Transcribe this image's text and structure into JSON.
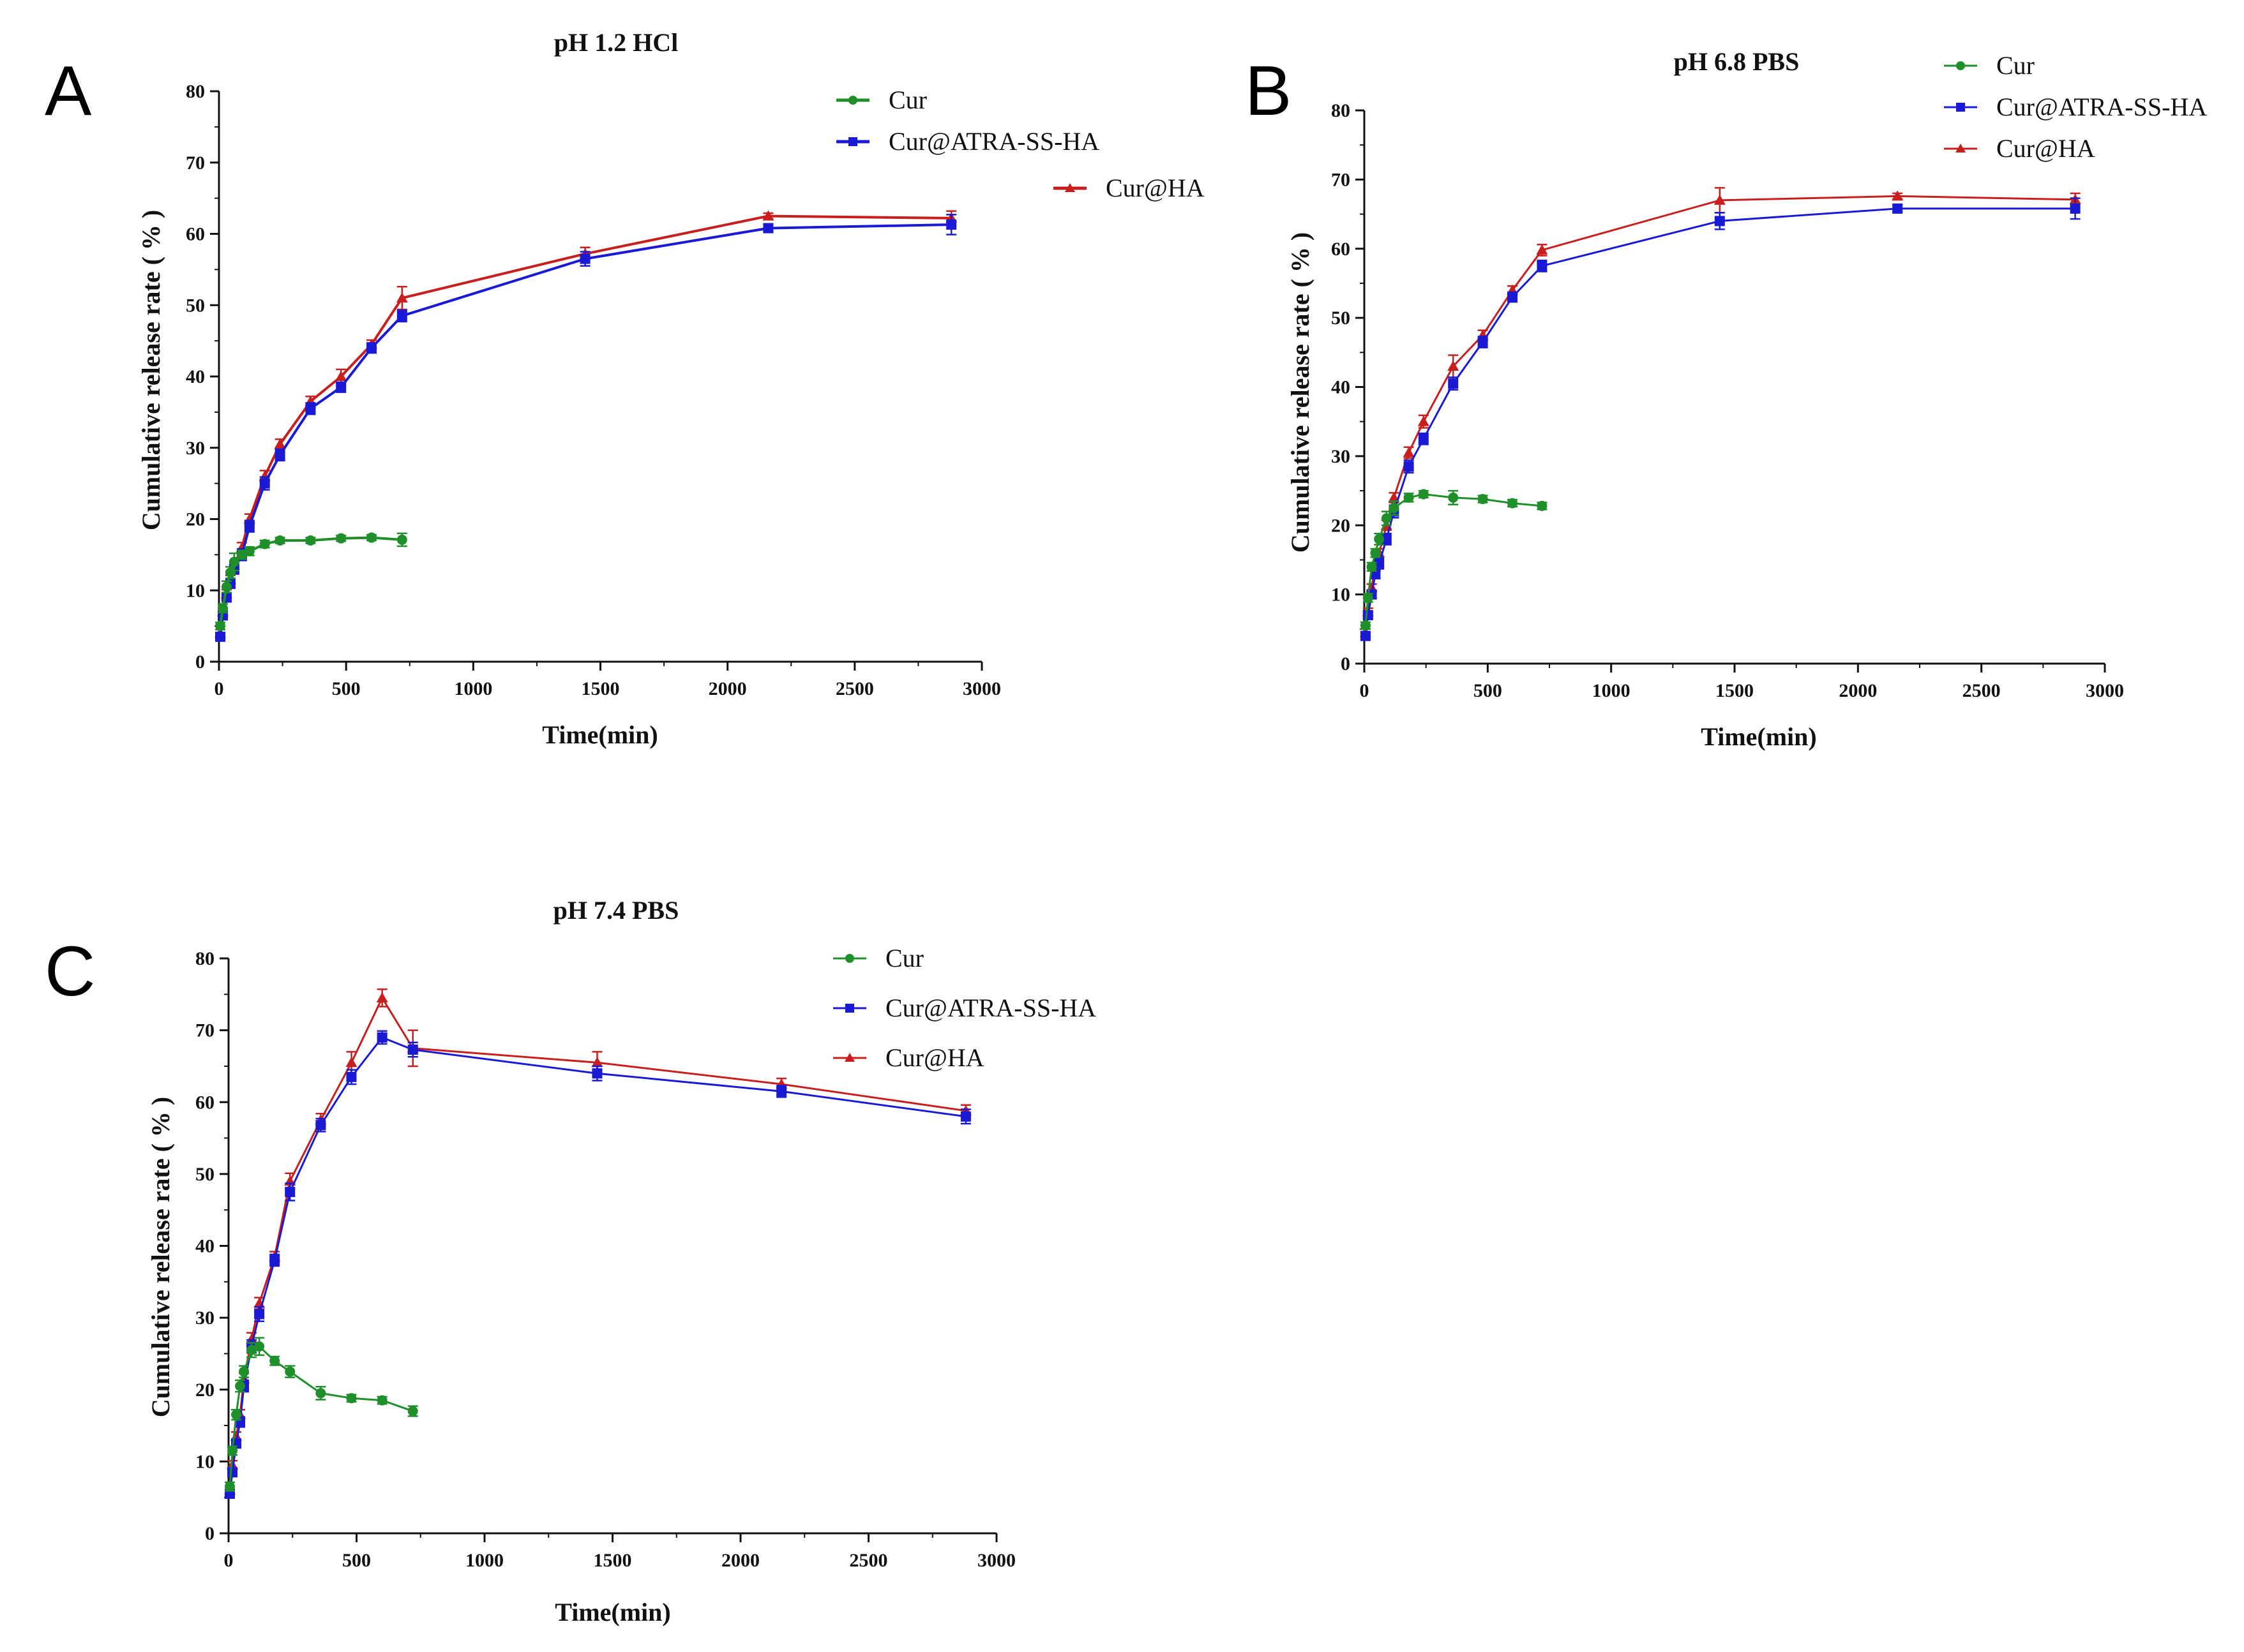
{
  "colors": {
    "Cur": "#1f8f2a",
    "Cur@ATRA-SS-HA": "#1a1ad6",
    "Cur@HA": "#c81e1e"
  },
  "chart_data": [
    {
      "panel": "A",
      "type": "line",
      "title": "pH 1.2 HCl",
      "xlabel": "Time(min)",
      "ylabel": "Cumulative release rate ( % )",
      "xlim": [
        0,
        3000
      ],
      "ylim": [
        0,
        80
      ],
      "xticks": [
        0,
        500,
        1000,
        1500,
        2000,
        2500,
        3000
      ],
      "yticks": [
        0,
        10,
        20,
        30,
        40,
        50,
        60,
        70,
        80
      ],
      "legend": [
        "Cur",
        "Cur@ATRA-SS-HA",
        "Cur@HA"
      ],
      "series": [
        {
          "name": "Cur",
          "marker": "circle",
          "x": [
            5,
            15,
            30,
            45,
            60,
            90,
            120,
            180,
            240,
            360,
            480,
            600,
            720
          ],
          "y": [
            5,
            7.5,
            10.5,
            12.5,
            14,
            15,
            15.5,
            16.5,
            17,
            17,
            17.3,
            17.4,
            17.1
          ],
          "err": [
            0.5,
            0.6,
            0.8,
            0.8,
            1.2,
            0.6,
            0.6,
            0.5,
            0.4,
            0.4,
            0.4,
            0.4,
            0.9
          ]
        },
        {
          "name": "Cur@ATRA-SS-HA",
          "marker": "square",
          "x": [
            5,
            15,
            30,
            45,
            60,
            90,
            120,
            180,
            240,
            360,
            480,
            600,
            720,
            1440,
            2160,
            2880
          ],
          "y": [
            3.5,
            6.5,
            9,
            11,
            13,
            15,
            19,
            25,
            29,
            35.5,
            38.5,
            44,
            48.5,
            56.5,
            60.8,
            61.3
          ],
          "err": [
            0.5,
            0.6,
            0.6,
            0.7,
            0.7,
            0.8,
            0.8,
            0.9,
            0.8,
            0.8,
            0.7,
            0.7,
            0.8,
            1.0,
            0.5,
            1.4
          ]
        },
        {
          "name": "Cur@HA",
          "marker": "triangle",
          "x": [
            5,
            15,
            30,
            45,
            60,
            90,
            120,
            180,
            240,
            360,
            480,
            600,
            720,
            1440,
            2160,
            2880
          ],
          "y": [
            4,
            7,
            9.5,
            11.5,
            13.5,
            16,
            20,
            26,
            30.5,
            36.5,
            40,
            44.5,
            51,
            57.2,
            62.5,
            62.2
          ],
          "err": [
            0.5,
            0.5,
            0.6,
            0.6,
            0.6,
            0.7,
            0.7,
            0.8,
            0.7,
            0.7,
            1.0,
            0.6,
            1.6,
            0.9,
            0.4,
            1.0
          ]
        }
      ]
    },
    {
      "panel": "B",
      "type": "line",
      "title": "pH 6.8 PBS",
      "xlabel": "Time(min)",
      "ylabel": "Cumulative release rate ( % )",
      "xlim": [
        0,
        3000
      ],
      "ylim": [
        0,
        80
      ],
      "xticks": [
        0,
        500,
        1000,
        1500,
        2000,
        2500,
        3000
      ],
      "yticks": [
        0,
        10,
        20,
        30,
        40,
        50,
        60,
        70,
        80
      ],
      "legend": [
        "Cur",
        "Cur@ATRA-SS-HA",
        "Cur@HA"
      ],
      "series": [
        {
          "name": "Cur",
          "marker": "circle",
          "x": [
            5,
            15,
            30,
            45,
            60,
            90,
            120,
            180,
            240,
            360,
            480,
            600,
            720
          ],
          "y": [
            5.5,
            9.5,
            14,
            16,
            18,
            21,
            22.5,
            24,
            24.5,
            24,
            23.8,
            23.2,
            22.8
          ],
          "err": [
            0.5,
            0.6,
            0.6,
            0.6,
            0.8,
            1.0,
            1.0,
            0.6,
            0.5,
            1.0,
            0.5,
            0.5,
            0.5
          ]
        },
        {
          "name": "Cur@ATRA-SS-HA",
          "marker": "square",
          "x": [
            5,
            15,
            30,
            45,
            60,
            90,
            120,
            180,
            240,
            360,
            480,
            600,
            720,
            1440,
            2160,
            2880
          ],
          "y": [
            4,
            7,
            10,
            13,
            14.5,
            18,
            22,
            28.5,
            32.5,
            40.5,
            46.5,
            53,
            57.5,
            64,
            65.8,
            65.8
          ],
          "err": [
            0.5,
            0.5,
            0.6,
            0.7,
            0.8,
            0.8,
            0.9,
            0.9,
            0.8,
            0.9,
            0.8,
            0.7,
            0.8,
            1.2,
            0.5,
            1.5
          ]
        },
        {
          "name": "Cur@HA",
          "marker": "triangle",
          "x": [
            5,
            15,
            30,
            45,
            60,
            90,
            120,
            180,
            240,
            360,
            480,
            600,
            720,
            1440,
            2160,
            2880
          ],
          "y": [
            4.5,
            7.5,
            11,
            14,
            16,
            20,
            24,
            30.5,
            35,
            43,
            47.5,
            54,
            59.8,
            67,
            67.6,
            67.1
          ],
          "err": [
            0.5,
            0.5,
            0.5,
            0.6,
            0.6,
            0.7,
            0.7,
            0.8,
            0.9,
            1.6,
            0.7,
            0.6,
            0.8,
            1.8,
            0.4,
            0.9
          ]
        }
      ]
    },
    {
      "panel": "C",
      "type": "line",
      "title": "pH 7.4 PBS",
      "xlabel": "Time(min)",
      "ylabel": "Cumulative release rate ( % )",
      "xlim": [
        0,
        3000
      ],
      "ylim": [
        0,
        80
      ],
      "xticks": [
        0,
        500,
        1000,
        1500,
        2000,
        2500,
        3000
      ],
      "yticks": [
        0,
        10,
        20,
        30,
        40,
        50,
        60,
        70,
        80
      ],
      "legend": [
        "Cur",
        "Cur@ATRA-SS-HA",
        "Cur@HA"
      ],
      "series": [
        {
          "name": "Cur",
          "marker": "circle",
          "x": [
            5,
            15,
            30,
            45,
            60,
            90,
            120,
            180,
            240,
            360,
            480,
            600,
            720
          ],
          "y": [
            6.5,
            11.5,
            16.5,
            20.5,
            22.5,
            25.5,
            26,
            24,
            22.5,
            19.5,
            18.8,
            18.5,
            17
          ],
          "err": [
            0.6,
            0.6,
            0.7,
            0.8,
            0.8,
            1.0,
            1.2,
            0.6,
            0.8,
            0.9,
            0.5,
            0.5,
            0.7
          ]
        },
        {
          "name": "Cur@ATRA-SS-HA",
          "marker": "square",
          "x": [
            5,
            15,
            30,
            45,
            60,
            90,
            120,
            180,
            240,
            360,
            480,
            600,
            720,
            1440,
            2160,
            2880
          ],
          "y": [
            5.5,
            8.5,
            12.5,
            15.5,
            20.5,
            26,
            30.5,
            38,
            47.5,
            56.8,
            63.5,
            69,
            67.3,
            64,
            61.5,
            58
          ],
          "err": [
            0.5,
            0.6,
            0.6,
            0.7,
            0.8,
            0.9,
            1.0,
            0.8,
            1.2,
            0.9,
            1.0,
            0.9,
            1.0,
            1.0,
            0.8,
            1.0
          ]
        },
        {
          "name": "Cur@HA",
          "marker": "triangle",
          "x": [
            5,
            15,
            30,
            45,
            60,
            90,
            120,
            180,
            240,
            360,
            480,
            600,
            720,
            1440,
            2160,
            2880
          ],
          "y": [
            6,
            9.5,
            13.5,
            16.5,
            21.5,
            27,
            32,
            38.5,
            49,
            57.5,
            65.5,
            74.5,
            67.5,
            65.5,
            62.5,
            58.8
          ],
          "err": [
            0.5,
            0.6,
            0.6,
            0.7,
            0.8,
            0.9,
            0.8,
            0.7,
            1.1,
            0.9,
            1.5,
            1.2,
            2.5,
            1.5,
            0.8,
            0.8
          ]
        }
      ]
    }
  ]
}
